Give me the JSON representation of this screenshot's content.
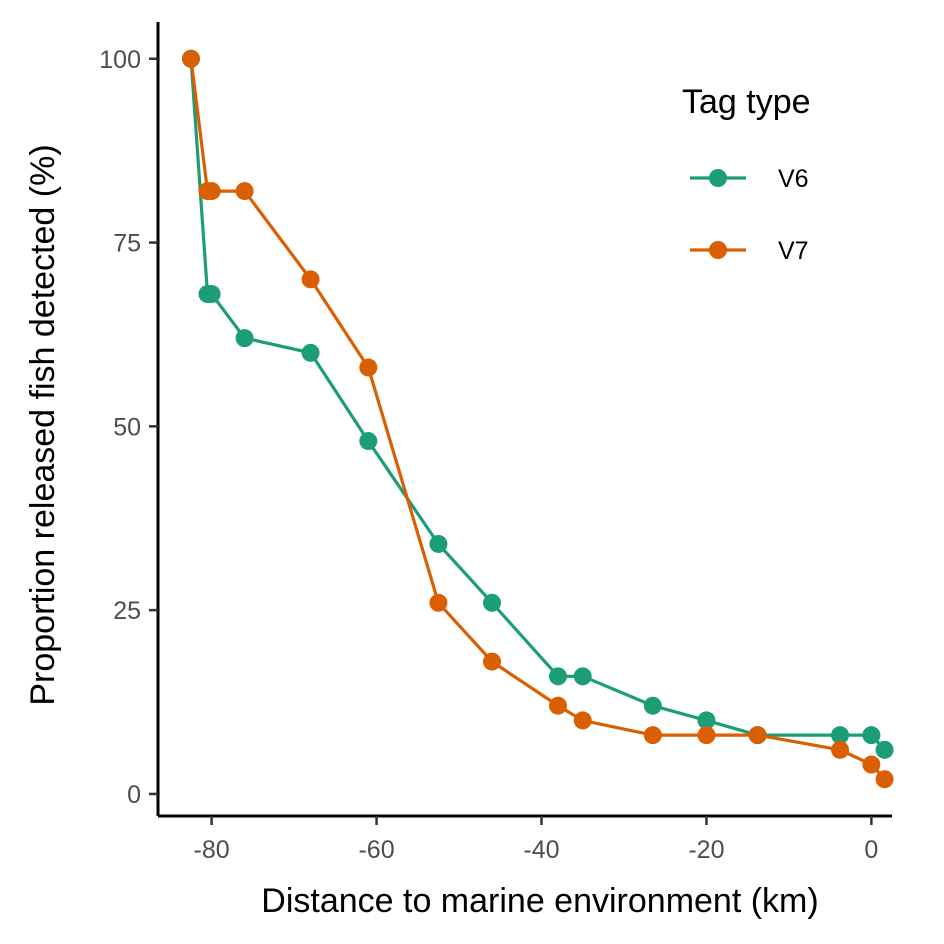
{
  "chart_data": {
    "type": "line",
    "xlabel": "Distance to marine environment (km)",
    "ylabel": "Proportion released fish detected (%)",
    "xlim": [
      -86.5,
      2.5
    ],
    "ylim": [
      -3,
      105
    ],
    "x_ticks": [
      -80,
      -60,
      -40,
      -20,
      0
    ],
    "x_tick_labels": [
      "-80",
      "-60",
      "-40",
      "-20",
      "0"
    ],
    "y_ticks": [
      0,
      25,
      50,
      75,
      100
    ],
    "y_tick_labels": [
      "0",
      "25",
      "50",
      "75",
      "100"
    ],
    "grid": false,
    "legend": {
      "title": "Tag type",
      "position": "top-right"
    },
    "series": [
      {
        "name": "V6",
        "color": "#1b9e77",
        "x": [
          -82.5,
          -80.5,
          -80,
          -76,
          -68,
          -61,
          -52.5,
          -46,
          -38,
          -35,
          -26.5,
          -20,
          -13.8,
          -3.8,
          0,
          1.6
        ],
        "y": [
          100,
          68,
          68,
          62,
          60,
          48,
          34,
          26,
          16,
          16,
          12,
          10,
          8,
          8,
          8,
          6
        ]
      },
      {
        "name": "V7",
        "color": "#d95f02",
        "x": [
          -82.5,
          -80.5,
          -80,
          -76,
          -68,
          -61,
          -52.5,
          -46,
          -38,
          -35,
          -26.5,
          -20,
          -13.8,
          -3.8,
          0,
          1.6
        ],
        "y": [
          100,
          82,
          82,
          82,
          70,
          58,
          26,
          18,
          12,
          10,
          8,
          8,
          8,
          6,
          4,
          2
        ]
      }
    ]
  }
}
